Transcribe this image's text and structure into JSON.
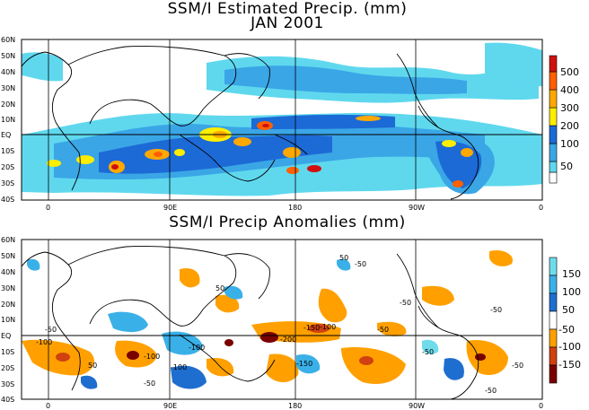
{
  "map1": {
    "title_line1": "SSM/I Estimated Precip. (mm)",
    "title_line2": "JAN 2001",
    "lat_labels": [
      "60N",
      "50N",
      "40N",
      "30N",
      "20N",
      "10N",
      "EQ",
      "10S",
      "20S",
      "30S",
      "40S"
    ],
    "lon_labels": [
      "0",
      "90E",
      "180",
      "90W",
      "0"
    ],
    "colorbar": {
      "labels": [
        "500",
        "400",
        "300",
        "200",
        "100",
        "50"
      ],
      "colors": [
        "#ffffff",
        "#5fd8ee",
        "#3aa6e6",
        "#1c6ad6",
        "#ffee00",
        "#ffa800",
        "#ff6000",
        "#d01010"
      ]
    }
  },
  "map2": {
    "title": "SSM/I Precip Anomalies (mm)",
    "lat_labels": [
      "60N",
      "50N",
      "40N",
      "30N",
      "20N",
      "10N",
      "EQ",
      "10S",
      "20S",
      "30S",
      "40S"
    ],
    "lon_labels": [
      "0",
      "90E",
      "180",
      "90W",
      "0"
    ],
    "colorbar": {
      "labels": [
        "150",
        "100",
        "50",
        "-50",
        "-100",
        "-150"
      ],
      "colors": [
        "#6fdcec",
        "#3ab0e8",
        "#1e6ed0",
        "#ffffff",
        "#ffa000",
        "#d04010",
        "#7a0000"
      ]
    }
  },
  "contour_labels": [
    "50",
    "-50",
    "-100",
    "-150",
    "-200",
    "50",
    "-50",
    "-100",
    "50",
    "-50",
    "-100",
    "-150",
    "-50",
    "-50",
    "-100",
    "-50",
    "-50",
    "-50",
    "-100",
    "-50"
  ]
}
